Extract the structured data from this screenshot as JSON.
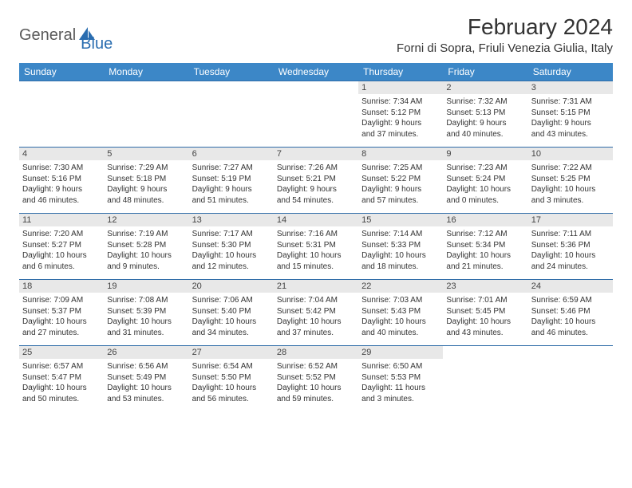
{
  "logo": {
    "word1": "General",
    "word2": "Blue"
  },
  "title": "February 2024",
  "location": "Forni di Sopra, Friuli Venezia Giulia, Italy",
  "colors": {
    "header_bg": "#3c87c7",
    "header_text": "#ffffff",
    "week_border": "#2f6ca8",
    "daynum_bg": "#e8e8e8",
    "body_text": "#333333",
    "logo_gray": "#5a5a5a",
    "logo_blue": "#2a6db0",
    "page_bg": "#ffffff"
  },
  "fonts": {
    "title_pt": 28,
    "location_pt": 15,
    "weekday_pt": 12,
    "daynum_pt": 11,
    "body_pt": 10
  },
  "weekdays": [
    "Sunday",
    "Monday",
    "Tuesday",
    "Wednesday",
    "Thursday",
    "Friday",
    "Saturday"
  ],
  "weeks": [
    [
      null,
      null,
      null,
      null,
      {
        "n": "1",
        "sr": "Sunrise: 7:34 AM",
        "ss": "Sunset: 5:12 PM",
        "d1": "Daylight: 9 hours",
        "d2": "and 37 minutes."
      },
      {
        "n": "2",
        "sr": "Sunrise: 7:32 AM",
        "ss": "Sunset: 5:13 PM",
        "d1": "Daylight: 9 hours",
        "d2": "and 40 minutes."
      },
      {
        "n": "3",
        "sr": "Sunrise: 7:31 AM",
        "ss": "Sunset: 5:15 PM",
        "d1": "Daylight: 9 hours",
        "d2": "and 43 minutes."
      }
    ],
    [
      {
        "n": "4",
        "sr": "Sunrise: 7:30 AM",
        "ss": "Sunset: 5:16 PM",
        "d1": "Daylight: 9 hours",
        "d2": "and 46 minutes."
      },
      {
        "n": "5",
        "sr": "Sunrise: 7:29 AM",
        "ss": "Sunset: 5:18 PM",
        "d1": "Daylight: 9 hours",
        "d2": "and 48 minutes."
      },
      {
        "n": "6",
        "sr": "Sunrise: 7:27 AM",
        "ss": "Sunset: 5:19 PM",
        "d1": "Daylight: 9 hours",
        "d2": "and 51 minutes."
      },
      {
        "n": "7",
        "sr": "Sunrise: 7:26 AM",
        "ss": "Sunset: 5:21 PM",
        "d1": "Daylight: 9 hours",
        "d2": "and 54 minutes."
      },
      {
        "n": "8",
        "sr": "Sunrise: 7:25 AM",
        "ss": "Sunset: 5:22 PM",
        "d1": "Daylight: 9 hours",
        "d2": "and 57 minutes."
      },
      {
        "n": "9",
        "sr": "Sunrise: 7:23 AM",
        "ss": "Sunset: 5:24 PM",
        "d1": "Daylight: 10 hours",
        "d2": "and 0 minutes."
      },
      {
        "n": "10",
        "sr": "Sunrise: 7:22 AM",
        "ss": "Sunset: 5:25 PM",
        "d1": "Daylight: 10 hours",
        "d2": "and 3 minutes."
      }
    ],
    [
      {
        "n": "11",
        "sr": "Sunrise: 7:20 AM",
        "ss": "Sunset: 5:27 PM",
        "d1": "Daylight: 10 hours",
        "d2": "and 6 minutes."
      },
      {
        "n": "12",
        "sr": "Sunrise: 7:19 AM",
        "ss": "Sunset: 5:28 PM",
        "d1": "Daylight: 10 hours",
        "d2": "and 9 minutes."
      },
      {
        "n": "13",
        "sr": "Sunrise: 7:17 AM",
        "ss": "Sunset: 5:30 PM",
        "d1": "Daylight: 10 hours",
        "d2": "and 12 minutes."
      },
      {
        "n": "14",
        "sr": "Sunrise: 7:16 AM",
        "ss": "Sunset: 5:31 PM",
        "d1": "Daylight: 10 hours",
        "d2": "and 15 minutes."
      },
      {
        "n": "15",
        "sr": "Sunrise: 7:14 AM",
        "ss": "Sunset: 5:33 PM",
        "d1": "Daylight: 10 hours",
        "d2": "and 18 minutes."
      },
      {
        "n": "16",
        "sr": "Sunrise: 7:12 AM",
        "ss": "Sunset: 5:34 PM",
        "d1": "Daylight: 10 hours",
        "d2": "and 21 minutes."
      },
      {
        "n": "17",
        "sr": "Sunrise: 7:11 AM",
        "ss": "Sunset: 5:36 PM",
        "d1": "Daylight: 10 hours",
        "d2": "and 24 minutes."
      }
    ],
    [
      {
        "n": "18",
        "sr": "Sunrise: 7:09 AM",
        "ss": "Sunset: 5:37 PM",
        "d1": "Daylight: 10 hours",
        "d2": "and 27 minutes."
      },
      {
        "n": "19",
        "sr": "Sunrise: 7:08 AM",
        "ss": "Sunset: 5:39 PM",
        "d1": "Daylight: 10 hours",
        "d2": "and 31 minutes."
      },
      {
        "n": "20",
        "sr": "Sunrise: 7:06 AM",
        "ss": "Sunset: 5:40 PM",
        "d1": "Daylight: 10 hours",
        "d2": "and 34 minutes."
      },
      {
        "n": "21",
        "sr": "Sunrise: 7:04 AM",
        "ss": "Sunset: 5:42 PM",
        "d1": "Daylight: 10 hours",
        "d2": "and 37 minutes."
      },
      {
        "n": "22",
        "sr": "Sunrise: 7:03 AM",
        "ss": "Sunset: 5:43 PM",
        "d1": "Daylight: 10 hours",
        "d2": "and 40 minutes."
      },
      {
        "n": "23",
        "sr": "Sunrise: 7:01 AM",
        "ss": "Sunset: 5:45 PM",
        "d1": "Daylight: 10 hours",
        "d2": "and 43 minutes."
      },
      {
        "n": "24",
        "sr": "Sunrise: 6:59 AM",
        "ss": "Sunset: 5:46 PM",
        "d1": "Daylight: 10 hours",
        "d2": "and 46 minutes."
      }
    ],
    [
      {
        "n": "25",
        "sr": "Sunrise: 6:57 AM",
        "ss": "Sunset: 5:47 PM",
        "d1": "Daylight: 10 hours",
        "d2": "and 50 minutes."
      },
      {
        "n": "26",
        "sr": "Sunrise: 6:56 AM",
        "ss": "Sunset: 5:49 PM",
        "d1": "Daylight: 10 hours",
        "d2": "and 53 minutes."
      },
      {
        "n": "27",
        "sr": "Sunrise: 6:54 AM",
        "ss": "Sunset: 5:50 PM",
        "d1": "Daylight: 10 hours",
        "d2": "and 56 minutes."
      },
      {
        "n": "28",
        "sr": "Sunrise: 6:52 AM",
        "ss": "Sunset: 5:52 PM",
        "d1": "Daylight: 10 hours",
        "d2": "and 59 minutes."
      },
      {
        "n": "29",
        "sr": "Sunrise: 6:50 AM",
        "ss": "Sunset: 5:53 PM",
        "d1": "Daylight: 11 hours",
        "d2": "and 3 minutes."
      },
      null,
      null
    ]
  ]
}
